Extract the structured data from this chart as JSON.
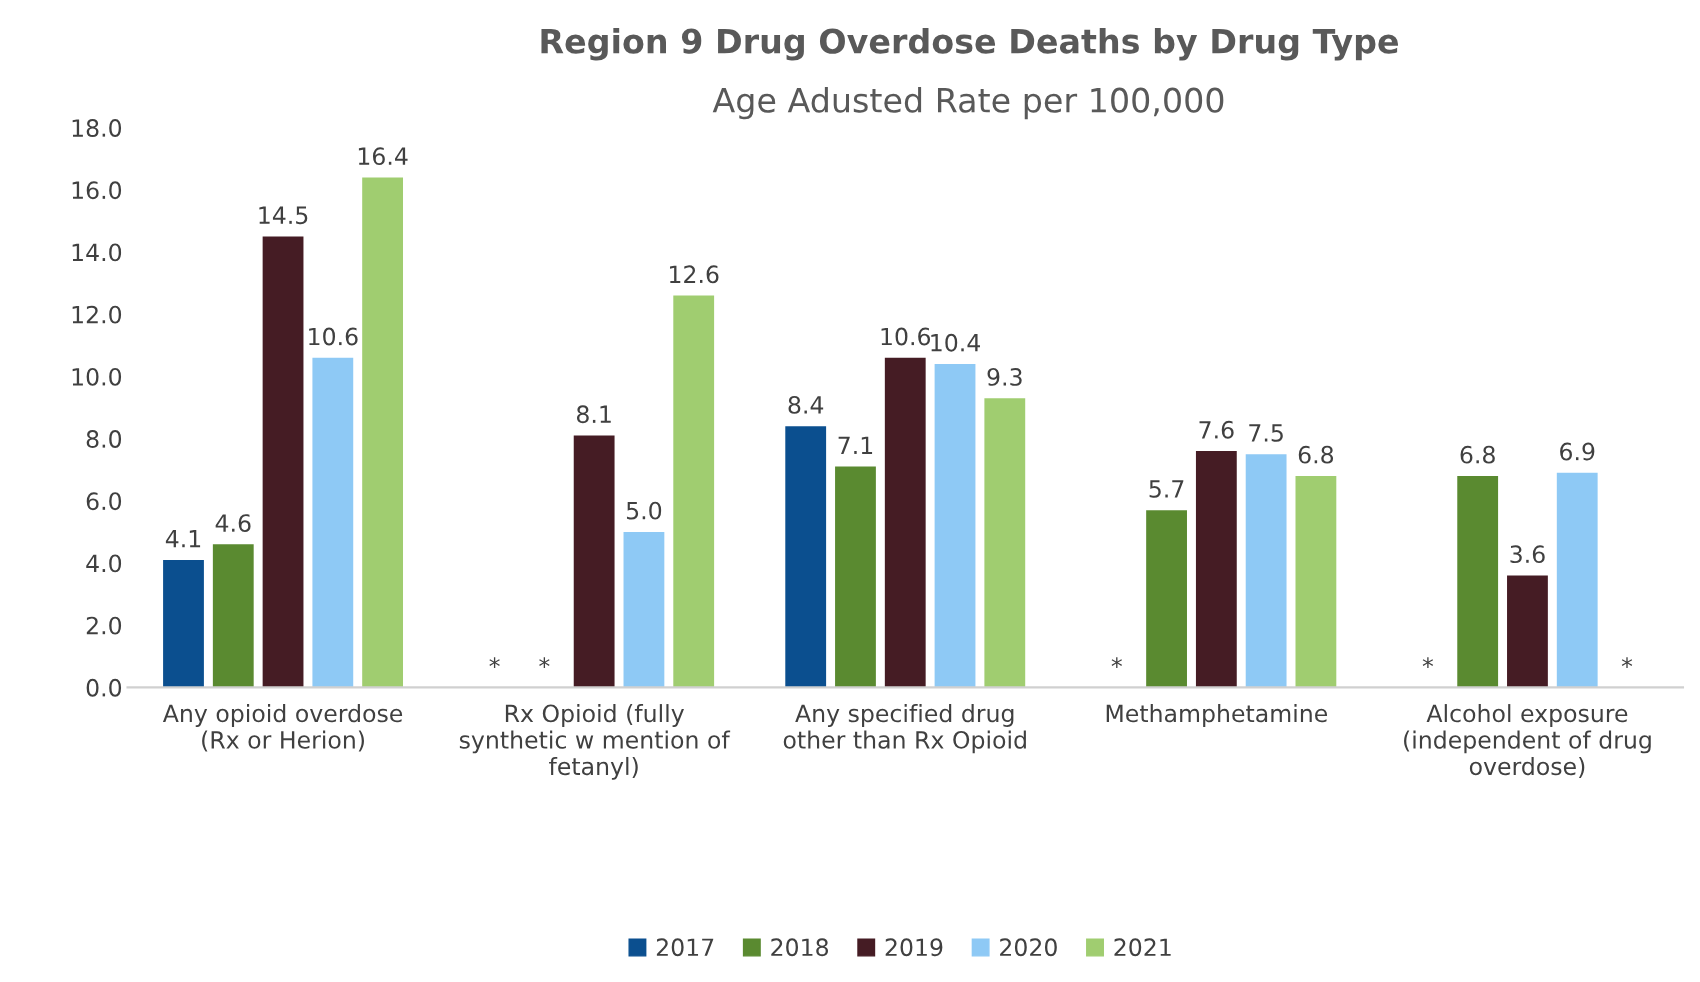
{
  "chart_data": {
    "type": "bar",
    "title": "Region 9 Drug Overdose Deaths by Drug Type",
    "subtitle": "Age Adusted Rate per 100,000",
    "categories": [
      "Any opioid overdose\n(Rx or Herion)",
      "Rx Opioid (fully\nsynthetic w mention of\nfetanyl)",
      "Any specified drug\nother than Rx Opioid",
      "Methamphetamine",
      "Alcohol exposure\n(independent of drug\noverdose)"
    ],
    "series": [
      {
        "name": "2017",
        "color": "#0b4f8f",
        "values": [
          4.1,
          null,
          8.4,
          null,
          null
        ],
        "value_labels": [
          "4.1",
          "*",
          "8.4",
          "*",
          "*"
        ]
      },
      {
        "name": "2018",
        "color": "#5a8a30",
        "values": [
          4.6,
          null,
          7.1,
          5.7,
          6.8
        ],
        "value_labels": [
          "4.6",
          "*",
          "7.1",
          "5.7",
          "6.8"
        ]
      },
      {
        "name": "2019",
        "color": "#451c24",
        "values": [
          14.5,
          8.1,
          10.6,
          7.6,
          3.6
        ],
        "value_labels": [
          "14.5",
          "8.1",
          "10.6",
          "7.6",
          "3.6"
        ]
      },
      {
        "name": "2020",
        "color": "#8ec9f5",
        "values": [
          10.6,
          5.0,
          10.4,
          7.5,
          6.9
        ],
        "value_labels": [
          "10.6",
          "5.0",
          "10.4",
          "7.5",
          "6.9"
        ]
      },
      {
        "name": "2021",
        "color": "#a0cd70",
        "values": [
          16.4,
          12.6,
          9.3,
          6.8,
          null
        ],
        "value_labels": [
          "16.4",
          "12.6",
          "9.3",
          "6.8",
          "*"
        ]
      }
    ],
    "ylim": [
      0,
      18
    ],
    "yticks": [
      {
        "value": 0,
        "label": "0.0"
      },
      {
        "value": 2,
        "label": "2.0"
      },
      {
        "value": 4,
        "label": "4.0"
      },
      {
        "value": 6,
        "label": "6.0"
      },
      {
        "value": 8,
        "label": "8.0"
      },
      {
        "value": 10,
        "label": "10.0"
      },
      {
        "value": 12,
        "label": "12.0"
      },
      {
        "value": 14,
        "label": "14.0"
      },
      {
        "value": 16,
        "label": "16.0"
      },
      {
        "value": 18,
        "label": "18.0"
      }
    ],
    "grid": false,
    "legend": "bottom"
  }
}
